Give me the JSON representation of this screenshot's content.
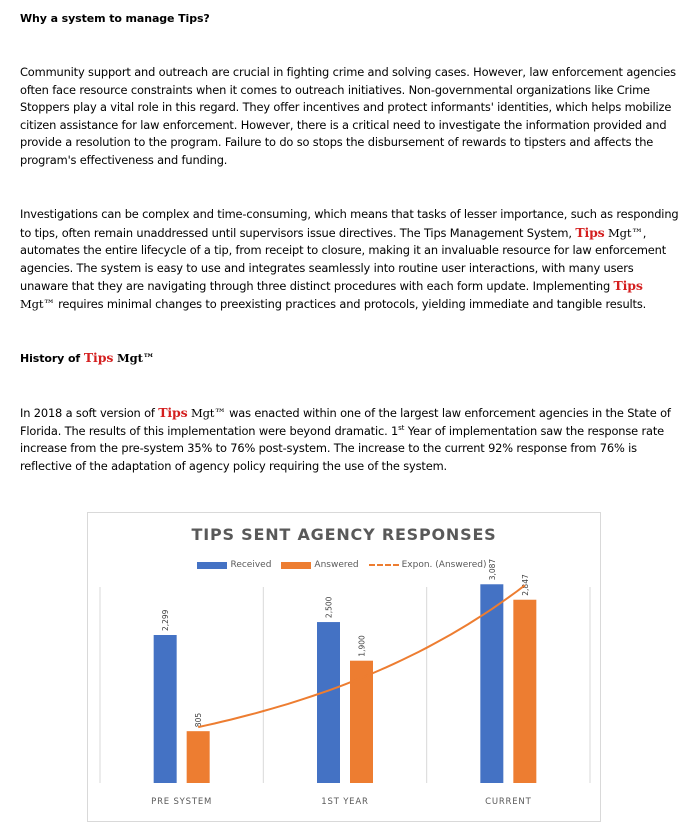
{
  "section1": {
    "heading": "Why a system to manage Tips?",
    "para1": "Community support and outreach are crucial in fighting crime and solving cases. However, law enforcement agencies often face resource constraints when it comes to outreach initiatives. Non-governmental organizations like Crime Stoppers play a vital role in this regard. They offer incentives and protect informants' identities, which helps mobilize citizen assistance for law enforcement. However, there is a critical need to investigate the information provided and provide a resolution to the program. Failure to do so stops the disbursement of rewards to tipsters and affects the program's effectiveness and funding.",
    "para2_a": "Investigations can be complex and time-consuming, which means that tasks of lesser importance, such as responding to tips, often remain unaddressed until supervisors issue directives. The Tips Management System, ",
    "para2_b": ", automates the entire lifecycle of a tip, from receipt to closure, making it an invaluable resource for law enforcement agencies. The system is easy to use and integrates seamlessly into routine user interactions, with many users unaware that they are navigating through three distinct procedures with each form update. Implementing ",
    "para2_c": " requires minimal changes to preexisting practices and protocols, yielding immediate and tangible results."
  },
  "brand": {
    "tips": "Tips",
    "mgt": "Mgt™"
  },
  "section2": {
    "heading_prefix": "History of ",
    "para_a": "In 2018 a soft version of ",
    "para_b": " was enacted within one of the largest law enforcement agencies in the State of Florida. The results of this implementation were beyond dramatic. 1",
    "para_sup": "st",
    "para_c": " Year of implementation saw the response rate increase from the pre-system 35% to 76% post-system. The increase to the current 92% response from 76% is reflective of the adaptation of agency policy requiring the use of the system."
  },
  "chart_data": {
    "type": "bar",
    "title": "TIPS SENT AGENCY RESPONSES",
    "categories": [
      "PRE SYSTEM",
      "1ST YEAR",
      "CURRENT"
    ],
    "series": [
      {
        "name": "Received",
        "values": [
          2299,
          2500,
          3087
        ],
        "labels": [
          "2,299",
          "2,500",
          "3,087"
        ],
        "color": "#4472C4"
      },
      {
        "name": "Answered",
        "values": [
          805,
          1900,
          2847
        ],
        "labels": [
          "805",
          "1,900",
          "2,847"
        ],
        "color": "#ED7D31"
      }
    ],
    "trendline": {
      "name": "Expon. (Answered)",
      "type": "exponential",
      "series": "Answered",
      "color": "#ED7D31"
    },
    "ylim": [
      0,
      3200
    ],
    "grid": "vertical category separators",
    "legend_position": "top"
  }
}
